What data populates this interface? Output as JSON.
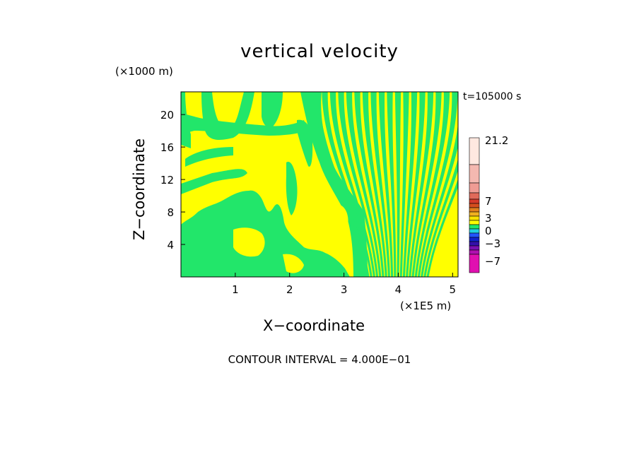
{
  "chart_data": {
    "type": "heatmap",
    "title": "vertical velocity",
    "xlabel": "X−coordinate",
    "ylabel": "Z−coordinate",
    "x_unit": "(×1E5 m)",
    "z_unit": "(×1000 m)",
    "time_label": "t=105000 s",
    "footer": "CONTOUR INTERVAL = 4.000E−01",
    "xlim": [
      0,
      5.1
    ],
    "ylim": [
      0,
      22.8
    ],
    "x_ticks": [
      "1",
      "2",
      "3",
      "4",
      "5"
    ],
    "y_ticks": [
      "4",
      "8",
      "12",
      "16",
      "20"
    ],
    "colorbar": {
      "labels": [
        "21.2",
        "7",
        "3",
        "0",
        "−3",
        "−7"
      ],
      "colors": [
        "#ffe8e0",
        "#f4b8b0",
        "#ef9c94",
        "#e06a5a",
        "#d63a2a",
        "#d64e1e",
        "#e07f1e",
        "#f0b020",
        "#f8e000",
        "#ffff00",
        "#22e66a",
        "#22cfe0",
        "#2255ff",
        "#1122cc",
        "#3311aa",
        "#7a10b0",
        "#b010b0",
        "#e010b0"
      ]
    },
    "field_colors": {
      "positive": "#ffff00",
      "negative": "#22e66a"
    }
  }
}
